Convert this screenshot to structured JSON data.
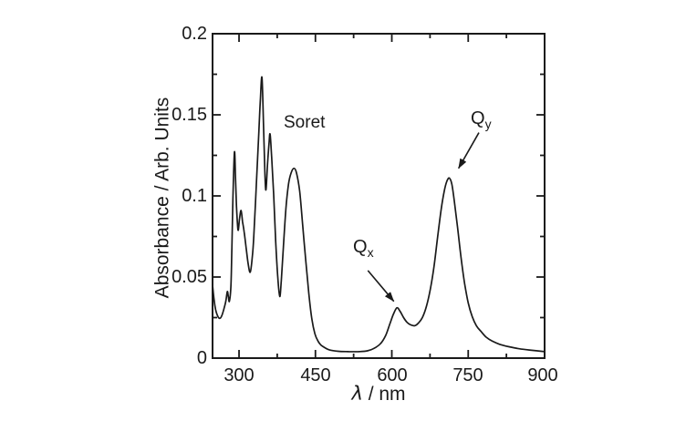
{
  "chart_data": {
    "type": "line",
    "title": "",
    "xlabel": "λ / nm",
    "xlabel_symbol": "λ",
    "xlabel_unit": " / nm",
    "ylabel": "Absorbance / Arb. Units",
    "xlim": [
      248,
      900
    ],
    "ylim": [
      0,
      0.2
    ],
    "grid": false,
    "frame": "box",
    "line_color": "#1a1a1a",
    "x_major_ticks": [
      300,
      450,
      600,
      750,
      900
    ],
    "x_minor_ticks": [
      375,
      525,
      675,
      825
    ],
    "x_tick_labels": [
      "300",
      "450",
      "600",
      "750",
      "900"
    ],
    "y_major_ticks": [
      0,
      0.05,
      0.1,
      0.15,
      0.2
    ],
    "y_minor_ticks": [
      0.025,
      0.075,
      0.125,
      0.175
    ],
    "y_tick_labels": [
      "0",
      "0.05",
      "0.1",
      "0.15",
      "0.2"
    ],
    "annotations": {
      "soret": {
        "text": "Soret"
      },
      "qx": {
        "main": "Q",
        "sub": "x",
        "arrow": {
          "from": [
            553,
            0.054
          ],
          "to": [
            604,
            0.035
          ]
        }
      },
      "qy": {
        "main": "Q",
        "sub": "y",
        "arrow": {
          "from": [
            771,
            0.139
          ],
          "to": [
            731,
            0.117
          ]
        }
      }
    },
    "series": [
      {
        "name": "absorbance-spectrum",
        "color": "#1a1a1a",
        "points": [
          [
            248,
            0.045
          ],
          [
            251,
            0.036
          ],
          [
            254,
            0.03
          ],
          [
            258,
            0.026
          ],
          [
            262,
            0.0245
          ],
          [
            266,
            0.026
          ],
          [
            270,
            0.03
          ],
          [
            274,
            0.035
          ],
          [
            277,
            0.041
          ],
          [
            279,
            0.038
          ],
          [
            281,
            0.035
          ],
          [
            284,
            0.044
          ],
          [
            286,
            0.068
          ],
          [
            288,
            0.098
          ],
          [
            291,
            0.127
          ],
          [
            293,
            0.112
          ],
          [
            295,
            0.094
          ],
          [
            298,
            0.079
          ],
          [
            301,
            0.086
          ],
          [
            304,
            0.091
          ],
          [
            307,
            0.084
          ],
          [
            310,
            0.078
          ],
          [
            314,
            0.068
          ],
          [
            318,
            0.058
          ],
          [
            322,
            0.053
          ],
          [
            326,
            0.062
          ],
          [
            329,
            0.075
          ],
          [
            334,
            0.107
          ],
          [
            339,
            0.14
          ],
          [
            342,
            0.16
          ],
          [
            345,
            0.173
          ],
          [
            348,
            0.145
          ],
          [
            351,
            0.112
          ],
          [
            353,
            0.104
          ],
          [
            356,
            0.12
          ],
          [
            359,
            0.133
          ],
          [
            361,
            0.138
          ],
          [
            364,
            0.124
          ],
          [
            368,
            0.101
          ],
          [
            372,
            0.072
          ],
          [
            376,
            0.05
          ],
          [
            380,
            0.038
          ],
          [
            383,
            0.048
          ],
          [
            387,
            0.068
          ],
          [
            392,
            0.092
          ],
          [
            397,
            0.107
          ],
          [
            402,
            0.114
          ],
          [
            408,
            0.117
          ],
          [
            413,
            0.114
          ],
          [
            419,
            0.103
          ],
          [
            425,
            0.082
          ],
          [
            431,
            0.06
          ],
          [
            437,
            0.04
          ],
          [
            443,
            0.024
          ],
          [
            449,
            0.015
          ],
          [
            455,
            0.0105
          ],
          [
            461,
            0.008
          ],
          [
            468,
            0.0065
          ],
          [
            478,
            0.005
          ],
          [
            495,
            0.0042
          ],
          [
            515,
            0.004
          ],
          [
            535,
            0.004
          ],
          [
            552,
            0.0045
          ],
          [
            565,
            0.006
          ],
          [
            578,
            0.009
          ],
          [
            588,
            0.014
          ],
          [
            596,
            0.021
          ],
          [
            603,
            0.027
          ],
          [
            610,
            0.031
          ],
          [
            616,
            0.029
          ],
          [
            623,
            0.025
          ],
          [
            630,
            0.022
          ],
          [
            637,
            0.0205
          ],
          [
            645,
            0.02
          ],
          [
            652,
            0.0215
          ],
          [
            660,
            0.025
          ],
          [
            668,
            0.032
          ],
          [
            676,
            0.043
          ],
          [
            683,
            0.057
          ],
          [
            690,
            0.075
          ],
          [
            697,
            0.092
          ],
          [
            703,
            0.103
          ],
          [
            708,
            0.109
          ],
          [
            713,
            0.111
          ],
          [
            718,
            0.107
          ],
          [
            723,
            0.096
          ],
          [
            729,
            0.081
          ],
          [
            736,
            0.062
          ],
          [
            743,
            0.046
          ],
          [
            750,
            0.034
          ],
          [
            758,
            0.0255
          ],
          [
            766,
            0.02
          ],
          [
            775,
            0.0165
          ],
          [
            785,
            0.013
          ],
          [
            797,
            0.0105
          ],
          [
            812,
            0.0085
          ],
          [
            830,
            0.007
          ],
          [
            850,
            0.0058
          ],
          [
            870,
            0.005
          ],
          [
            900,
            0.004
          ]
        ]
      }
    ]
  }
}
